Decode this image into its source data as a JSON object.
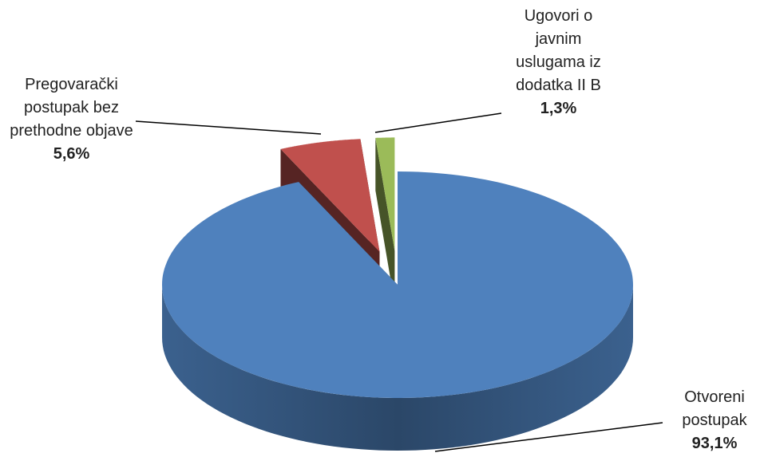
{
  "chart_data": {
    "type": "pie",
    "categories": [
      "Otvoreni postupak",
      "Pregovarački postupak bez prethodne objave",
      "Ugovori o javnim uslugama iz dodatka II B"
    ],
    "values": [
      93.1,
      5.6,
      1.3
    ],
    "value_labels": [
      "93,1%",
      "5,6%",
      "1,3%"
    ],
    "colors": [
      "#4f81bd",
      "#c0504d",
      "#9bbb59"
    ],
    "legend": false
  }
}
